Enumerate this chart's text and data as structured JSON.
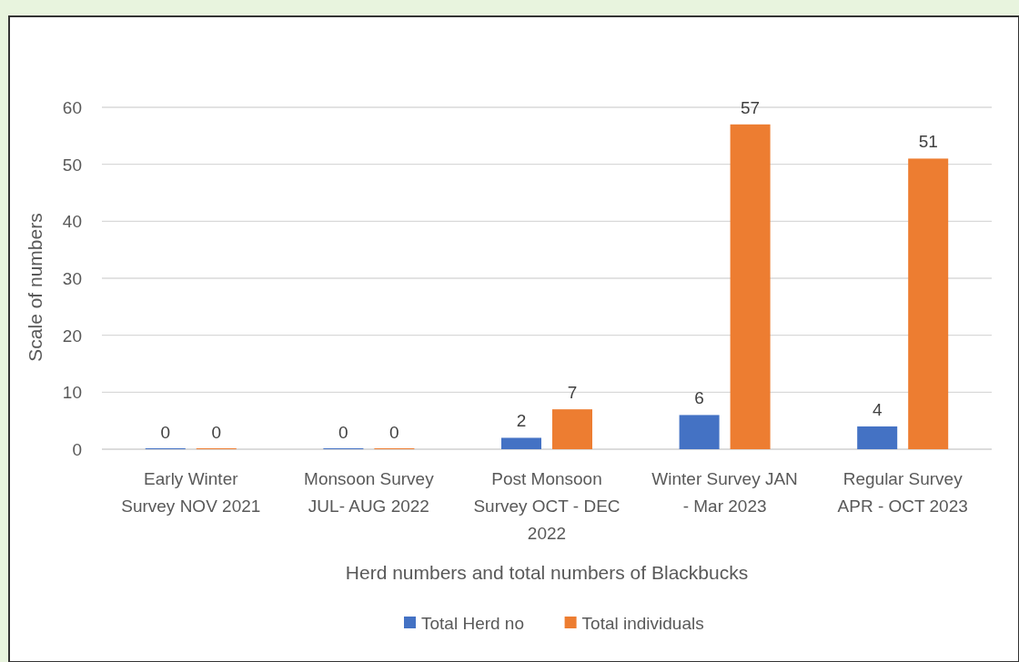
{
  "chart_data": {
    "type": "bar",
    "xlabel": "Herd numbers and total numbers of Blackbucks",
    "ylabel": "Scale of numbers",
    "categories": [
      "Early Winter Survey NOV 2021",
      "Monsoon Survey JUL- AUG 2022",
      "Post Monsoon Survey OCT - DEC 2022",
      "Winter Survey JAN - Mar 2023",
      "Regular Survey APR - OCT 2023"
    ],
    "series": [
      {
        "name": "Total Herd no",
        "color": "#4472c4",
        "values": [
          0,
          0,
          2,
          6,
          4
        ]
      },
      {
        "name": "Total individuals",
        "color": "#ed7d31",
        "values": [
          0,
          0,
          7,
          57,
          51
        ]
      }
    ],
    "ylim": [
      0,
      60
    ],
    "yticks": [
      0,
      10,
      20,
      30,
      40,
      50,
      60
    ],
    "grid": "y",
    "data_labels": true,
    "legend": "bottom"
  }
}
